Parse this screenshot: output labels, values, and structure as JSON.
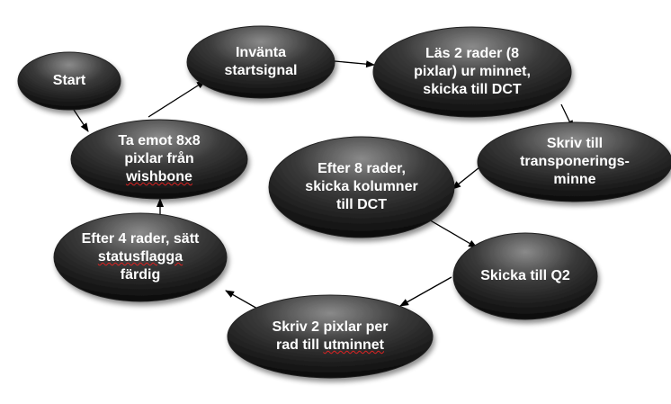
{
  "diagram": {
    "nodes": [
      {
        "id": "start",
        "label": "Start"
      },
      {
        "id": "take",
        "label": "Ta emot 8x8\npixlar från\nwishbone"
      },
      {
        "id": "wait",
        "label": "Invänta\nstartsignal"
      },
      {
        "id": "read",
        "label": "Läs 2 rader (8\npixlar) ur minnet,\nskicka till DCT"
      },
      {
        "id": "write",
        "label": "Skriv till\ntransponerings-\nminne"
      },
      {
        "id": "after8",
        "label": "Efter 8 rader,\nskicka kolumner\ntill DCT"
      },
      {
        "id": "q2",
        "label": "Skicka till Q2"
      },
      {
        "id": "write2",
        "label": "Skriv 2 pixlar per\nrad till utminnet"
      },
      {
        "id": "after4",
        "label": "Efter 4 rader, sätt\nstatusflagga\nfärdig"
      }
    ],
    "edges": [
      {
        "from": "start",
        "to": "take"
      },
      {
        "from": "take",
        "to": "wait"
      },
      {
        "from": "wait",
        "to": "read"
      },
      {
        "from": "read",
        "to": "write"
      },
      {
        "from": "write",
        "to": "after8"
      },
      {
        "from": "after8",
        "to": "q2"
      },
      {
        "from": "q2",
        "to": "write2"
      },
      {
        "from": "write2",
        "to": "after4"
      },
      {
        "from": "after4",
        "to": "take"
      }
    ],
    "colors": {
      "node_fill_light": "#7a7a7a",
      "node_fill_dark": "#0e0e0e",
      "node_text": "#ffffff",
      "arrow": "#000000"
    }
  }
}
